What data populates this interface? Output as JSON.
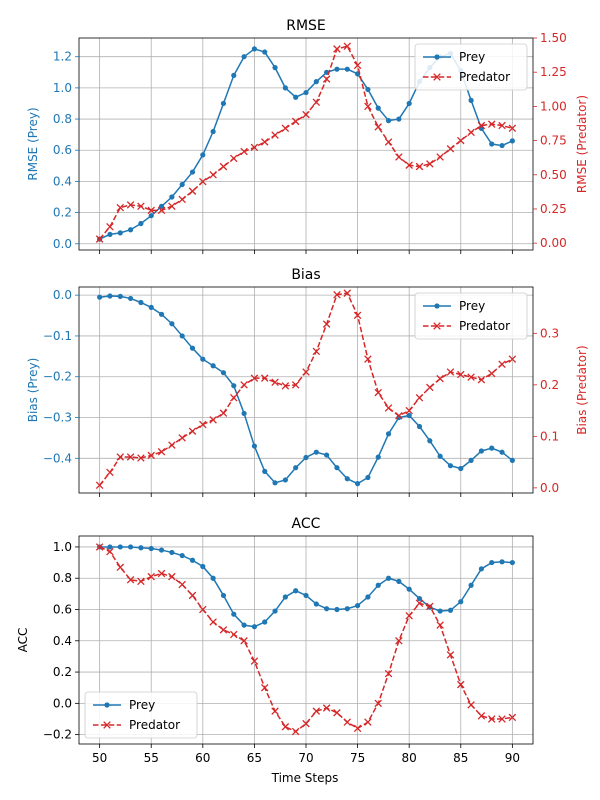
{
  "figure": {
    "xlabel": "Time Steps"
  },
  "colors": {
    "prey": "#1f77b4",
    "predator": "#d62728",
    "grid": "#b0b0b0",
    "axis": "#000000"
  },
  "chart_data": [
    {
      "type": "line",
      "title": "RMSE",
      "xlabel": "",
      "ylabel": "RMSE (Prey)",
      "ylabel_right": "RMSE (Predator)",
      "x": [
        50,
        51,
        52,
        53,
        54,
        55,
        56,
        57,
        58,
        59,
        60,
        61,
        62,
        63,
        64,
        65,
        66,
        67,
        68,
        69,
        70,
        71,
        72,
        73,
        74,
        75,
        76,
        77,
        78,
        79,
        80,
        81,
        82,
        83,
        84,
        85,
        86,
        87,
        88,
        89,
        90
      ],
      "xlim": [
        48.0,
        92.0
      ],
      "xticks": [
        50,
        55,
        60,
        65,
        70,
        75,
        80,
        85,
        90
      ],
      "ylim": [
        -0.04,
        1.32
      ],
      "yticks": [
        0.0,
        0.2,
        0.4,
        0.6,
        0.8,
        1.0,
        1.2
      ],
      "ytick_labels": [
        "0.0",
        "0.2",
        "0.4",
        "0.6",
        "0.8",
        "1.0",
        "1.2"
      ],
      "ylim_right": [
        -0.05,
        1.5
      ],
      "yticks_right": [
        0.0,
        0.25,
        0.5,
        0.75,
        1.0,
        1.25,
        1.5
      ],
      "ytick_labels_right": [
        "0.00",
        "0.25",
        "0.50",
        "0.75",
        "1.00",
        "1.25",
        "1.50"
      ],
      "legend": "top-right",
      "grid": true,
      "series": [
        {
          "name": "Prey",
          "axis": "left",
          "style": "solid-dot",
          "values": [
            0.03,
            0.06,
            0.07,
            0.09,
            0.13,
            0.18,
            0.24,
            0.3,
            0.38,
            0.46,
            0.57,
            0.72,
            0.9,
            1.08,
            1.2,
            1.25,
            1.23,
            1.13,
            1.0,
            0.94,
            0.97,
            1.04,
            1.1,
            1.12,
            1.12,
            1.09,
            0.99,
            0.87,
            0.79,
            0.8,
            0.9,
            1.04,
            1.13,
            1.2,
            1.22,
            1.11,
            0.92,
            0.74,
            0.64,
            0.63,
            0.66
          ]
        },
        {
          "name": "Predator",
          "axis": "right",
          "style": "dashed-x",
          "values": [
            0.03,
            0.12,
            0.26,
            0.28,
            0.27,
            0.24,
            0.24,
            0.27,
            0.32,
            0.38,
            0.45,
            0.5,
            0.56,
            0.62,
            0.67,
            0.7,
            0.74,
            0.79,
            0.84,
            0.89,
            0.94,
            1.03,
            1.2,
            1.42,
            1.44,
            1.3,
            1.0,
            0.85,
            0.74,
            0.63,
            0.57,
            0.56,
            0.58,
            0.63,
            0.69,
            0.75,
            0.81,
            0.86,
            0.87,
            0.86,
            0.84
          ]
        }
      ]
    },
    {
      "type": "line",
      "title": "Bias",
      "xlabel": "",
      "ylabel": "Bias (Prey)",
      "ylabel_right": "Bias (Predator)",
      "x": [
        50,
        51,
        52,
        53,
        54,
        55,
        56,
        57,
        58,
        59,
        60,
        61,
        62,
        63,
        64,
        65,
        66,
        67,
        68,
        69,
        70,
        71,
        72,
        73,
        74,
        75,
        76,
        77,
        78,
        79,
        80,
        81,
        82,
        83,
        84,
        85,
        86,
        87,
        88,
        89,
        90
      ],
      "xlim": [
        48.0,
        92.0
      ],
      "xticks": [
        50,
        55,
        60,
        65,
        70,
        75,
        80,
        85,
        90
      ],
      "ylim": [
        -0.485,
        0.02
      ],
      "yticks": [
        0.0,
        -0.1,
        -0.2,
        -0.3,
        -0.4
      ],
      "ytick_labels": [
        "0.0",
        "−0.1",
        "−0.2",
        "−0.3",
        "−0.4"
      ],
      "ylim_right": [
        -0.01,
        0.39
      ],
      "yticks_right": [
        0.0,
        0.1,
        0.2,
        0.3
      ],
      "ytick_labels_right": [
        "0.0",
        "0.1",
        "0.2",
        "0.3"
      ],
      "legend": "top-right",
      "grid": true,
      "series": [
        {
          "name": "Prey",
          "axis": "left",
          "style": "solid-dot",
          "values": [
            -0.005,
            -0.002,
            -0.003,
            -0.008,
            -0.018,
            -0.03,
            -0.047,
            -0.07,
            -0.1,
            -0.13,
            -0.157,
            -0.173,
            -0.19,
            -0.222,
            -0.29,
            -0.37,
            -0.432,
            -0.46,
            -0.453,
            -0.423,
            -0.398,
            -0.385,
            -0.392,
            -0.423,
            -0.45,
            -0.462,
            -0.447,
            -0.397,
            -0.34,
            -0.3,
            -0.295,
            -0.322,
            -0.357,
            -0.395,
            -0.418,
            -0.425,
            -0.405,
            -0.382,
            -0.375,
            -0.385,
            -0.405
          ]
        },
        {
          "name": "Predator",
          "axis": "right",
          "style": "dashed-x",
          "values": [
            0.005,
            0.03,
            0.06,
            0.06,
            0.058,
            0.063,
            0.07,
            0.083,
            0.097,
            0.11,
            0.123,
            0.132,
            0.145,
            0.175,
            0.2,
            0.213,
            0.213,
            0.205,
            0.198,
            0.2,
            0.225,
            0.265,
            0.318,
            0.375,
            0.378,
            0.335,
            0.25,
            0.185,
            0.155,
            0.14,
            0.15,
            0.175,
            0.195,
            0.212,
            0.225,
            0.22,
            0.215,
            0.21,
            0.222,
            0.24,
            0.25
          ]
        }
      ]
    },
    {
      "type": "line",
      "title": "ACC",
      "xlabel": "Time Steps",
      "ylabel": "ACC",
      "x": [
        50,
        51,
        52,
        53,
        54,
        55,
        56,
        57,
        58,
        59,
        60,
        61,
        62,
        63,
        64,
        65,
        66,
        67,
        68,
        69,
        70,
        71,
        72,
        73,
        74,
        75,
        76,
        77,
        78,
        79,
        80,
        81,
        82,
        83,
        84,
        85,
        86,
        87,
        88,
        89,
        90
      ],
      "xlim": [
        48.0,
        92.0
      ],
      "xticks": [
        50,
        55,
        60,
        65,
        70,
        75,
        80,
        85,
        90
      ],
      "ylim": [
        -0.26,
        1.07
      ],
      "yticks": [
        -0.2,
        0.0,
        0.2,
        0.4,
        0.6,
        0.8,
        1.0
      ],
      "ytick_labels": [
        "−0.2",
        "0.0",
        "0.2",
        "0.4",
        "0.6",
        "0.8",
        "1.0"
      ],
      "legend": "bottom-left",
      "grid": true,
      "series": [
        {
          "name": "Prey",
          "axis": "left",
          "style": "solid-dot",
          "values": [
            1.0,
            1.0,
            1.0,
            1.0,
            0.995,
            0.99,
            0.98,
            0.965,
            0.945,
            0.915,
            0.875,
            0.8,
            0.69,
            0.57,
            0.5,
            0.49,
            0.52,
            0.59,
            0.68,
            0.72,
            0.69,
            0.635,
            0.605,
            0.6,
            0.605,
            0.625,
            0.68,
            0.755,
            0.8,
            0.78,
            0.73,
            0.67,
            0.615,
            0.59,
            0.595,
            0.65,
            0.755,
            0.86,
            0.9,
            0.905,
            0.9
          ]
        },
        {
          "name": "Predator",
          "axis": "left",
          "style": "dashed-x",
          "values": [
            1.0,
            0.97,
            0.87,
            0.79,
            0.78,
            0.81,
            0.83,
            0.81,
            0.76,
            0.69,
            0.6,
            0.52,
            0.47,
            0.44,
            0.4,
            0.27,
            0.1,
            -0.05,
            -0.15,
            -0.18,
            -0.13,
            -0.05,
            -0.03,
            -0.06,
            -0.12,
            -0.16,
            -0.12,
            0.0,
            0.19,
            0.4,
            0.56,
            0.64,
            0.62,
            0.5,
            0.31,
            0.12,
            -0.01,
            -0.08,
            -0.1,
            -0.1,
            -0.09
          ]
        }
      ]
    }
  ]
}
